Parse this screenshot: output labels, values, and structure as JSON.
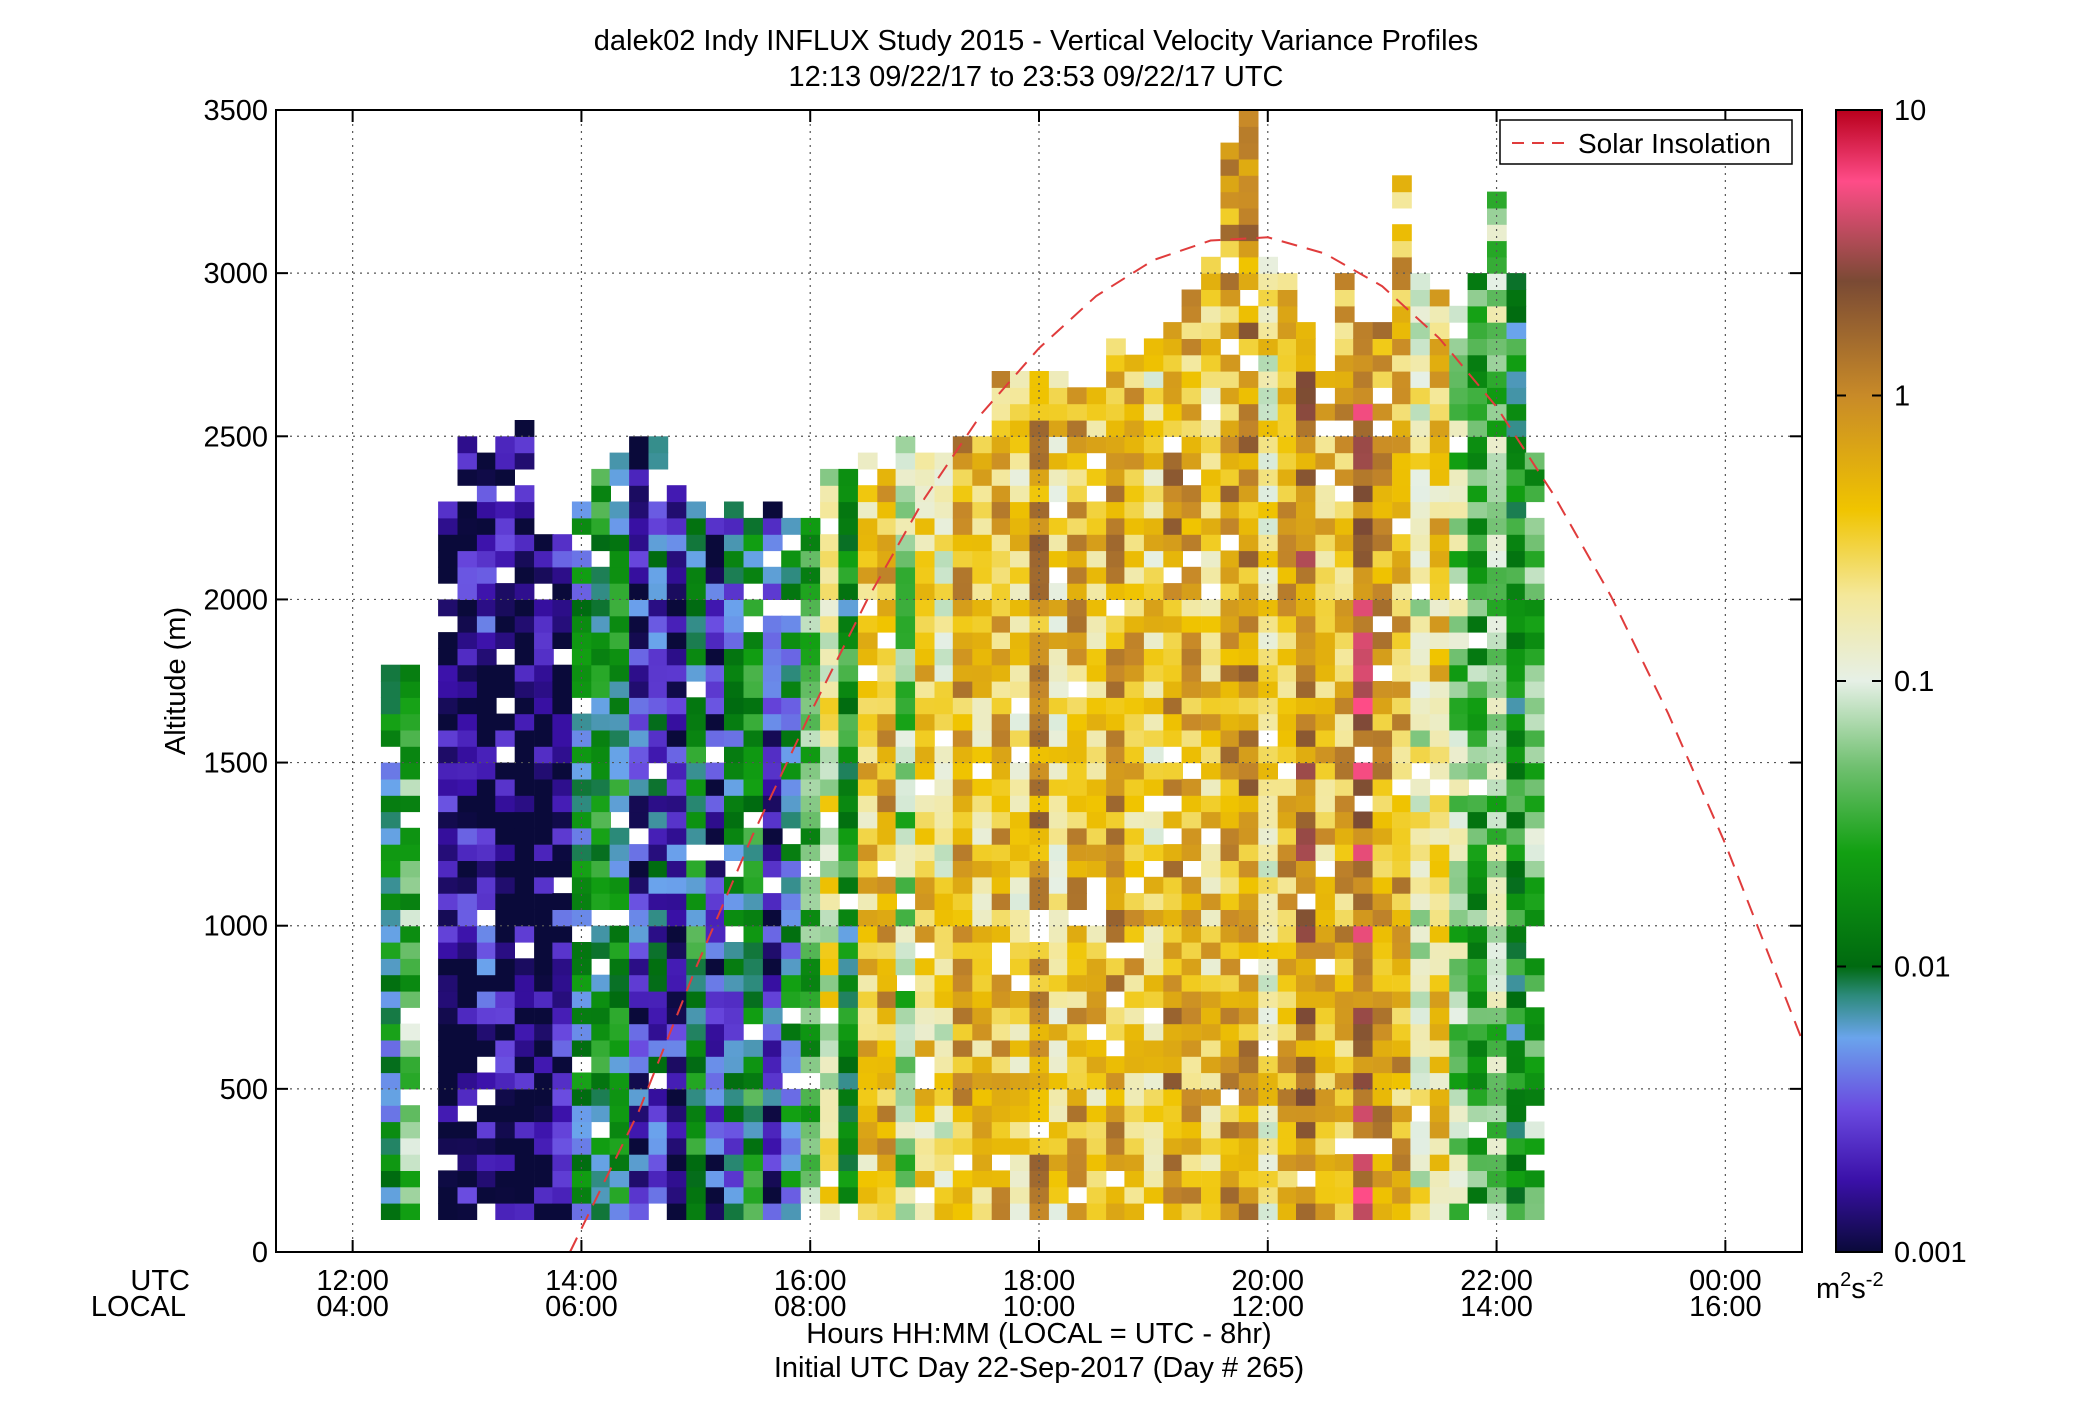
{
  "chart_data": {
    "type": "heatmap",
    "title": "dalek02 Indy INFLUX Study 2015 - Vertical Velocity Variance Profiles",
    "subtitle": "12:13 09/22/17 to 23:53 09/22/17  UTC",
    "ylabel": "Altitude (m)",
    "xlabel": "Hours HH:MM  (LOCAL = UTC - 8hr)",
    "xlabel2": "Initial UTC Day 22-Sep-2017 (Day # 265)",
    "x_axis_row_labels": [
      "UTC",
      "LOCAL"
    ],
    "xlim_hours_utc": [
      11.33,
      24.67
    ],
    "ylim": [
      0,
      3500
    ],
    "grid": true,
    "x_ticks": [
      {
        "hour": 12,
        "utc": "12:00",
        "local": "04:00"
      },
      {
        "hour": 14,
        "utc": "14:00",
        "local": "06:00"
      },
      {
        "hour": 16,
        "utc": "16:00",
        "local": "08:00"
      },
      {
        "hour": 18,
        "utc": "18:00",
        "local": "10:00"
      },
      {
        "hour": 20,
        "utc": "20:00",
        "local": "12:00"
      },
      {
        "hour": 22,
        "utc": "22:00",
        "local": "14:00"
      },
      {
        "hour": 24,
        "utc": "00:00",
        "local": "16:00"
      }
    ],
    "y_ticks": [
      0,
      500,
      1000,
      1500,
      2000,
      2500,
      3000,
      3500
    ],
    "colorbar": {
      "scale": "log",
      "range": [
        0.001,
        10
      ],
      "ticks": [
        {
          "value": 0.001,
          "label": "0.001"
        },
        {
          "value": 0.01,
          "label": "0.01"
        },
        {
          "value": 0.1,
          "label": "0.1"
        },
        {
          "value": 1,
          "label": "1"
        },
        {
          "value": 10,
          "label": "10"
        }
      ],
      "units_base": "m",
      "units_exp1": "2",
      "units_mid": "s",
      "units_exp2": "-2",
      "stops": [
        {
          "log10": -3.0,
          "color": "#0a0a3a"
        },
        {
          "log10": -2.75,
          "color": "#3a10a8"
        },
        {
          "log10": -2.5,
          "color": "#6a4ae0"
        },
        {
          "log10": -2.25,
          "color": "#6aa4ec"
        },
        {
          "log10": -2.1,
          "color": "#2c8a7a"
        },
        {
          "log10": -2.0,
          "color": "#006a10"
        },
        {
          "log10": -1.6,
          "color": "#12a012"
        },
        {
          "log10": -1.3,
          "color": "#70c070"
        },
        {
          "log10": -1.0,
          "color": "#e6f0e6"
        },
        {
          "log10": -0.7,
          "color": "#f4e89a"
        },
        {
          "log10": -0.4,
          "color": "#f0c400"
        },
        {
          "log10": 0.0,
          "color": "#c88a28"
        },
        {
          "log10": 0.4,
          "color": "#7a4a34"
        },
        {
          "log10": 0.75,
          "color": "#ff4c88"
        },
        {
          "log10": 1.0,
          "color": "#b8001c"
        }
      ]
    },
    "legend": {
      "label": "Solar Insolation",
      "placement": "top-right",
      "color": "#e03c3c",
      "style": "dashed"
    },
    "solar_insolation_curve": {
      "x_hours_utc": [
        13.9,
        14.5,
        15.0,
        15.5,
        16.0,
        16.5,
        17.0,
        17.5,
        18.0,
        18.5,
        19.0,
        19.5,
        20.0,
        20.5,
        21.0,
        21.5,
        22.0,
        22.5,
        23.0,
        23.5,
        24.0,
        24.67
      ],
      "y_altitude": [
        0,
        430,
        870,
        1280,
        1650,
        2000,
        2310,
        2570,
        2770,
        2930,
        3040,
        3100,
        3110,
        3060,
        2960,
        2800,
        2590,
        2320,
        2010,
        1650,
        1250,
        650
      ]
    },
    "profiles": {
      "time_step_hours": 0.1667,
      "bin_height_m": 50,
      "description_note": "",
      "columns": [
        {
          "t": 12.33,
          "top": 1800,
          "bands": [
            [
              0,
              1800,
              -2.0
            ]
          ]
        },
        {
          "t": 12.5,
          "top": 1800,
          "bands": [
            [
              0,
              1800,
              -1.4
            ]
          ]
        },
        {
          "t": 12.83,
          "top": 2300,
          "bands": [
            [
              0,
              2300,
              -2.9
            ]
          ]
        },
        {
          "t": 13.0,
          "top": 2500,
          "bands": [
            [
              0,
              2500,
              -2.85
            ]
          ]
        },
        {
          "t": 13.17,
          "top": 2450,
          "bands": [
            [
              0,
              2450,
              -2.7
            ]
          ]
        },
        {
          "t": 13.33,
          "top": 2500,
          "bands": [
            [
              0,
              2500,
              -2.9
            ]
          ]
        },
        {
          "t": 13.5,
          "top": 2550,
          "bands": [
            [
              0,
              2550,
              -3.0
            ]
          ]
        },
        {
          "t": 13.67,
          "top": 2200,
          "bands": [
            [
              0,
              2200,
              -3.0
            ]
          ]
        },
        {
          "t": 13.83,
          "top": 2200,
          "bands": [
            [
              0,
              2200,
              -2.8
            ]
          ]
        },
        {
          "t": 14.0,
          "top": 2300,
          "bands": [
            [
              0,
              2300,
              -2.0
            ]
          ]
        },
        {
          "t": 14.17,
          "top": 2400,
          "bands": [
            [
              0,
              2400,
              -1.8
            ]
          ]
        },
        {
          "t": 14.33,
          "top": 2450,
          "bands": [
            [
              0,
              2450,
              -1.9
            ]
          ]
        },
        {
          "t": 14.5,
          "top": 2500,
          "bands": [
            [
              0,
              2500,
              -2.6
            ]
          ]
        },
        {
          "t": 14.67,
          "top": 2500,
          "bands": [
            [
              0,
              2500,
              -2.4
            ]
          ]
        },
        {
          "t": 14.83,
          "top": 2350,
          "bands": [
            [
              0,
              2350,
              -2.7
            ]
          ]
        },
        {
          "t": 15.0,
          "top": 2350,
          "bands": [
            [
              0,
              2350,
              -1.8
            ]
          ]
        },
        {
          "t": 15.17,
          "top": 2300,
          "bands": [
            [
              0,
              2300,
              -2.7
            ]
          ]
        },
        {
          "t": 15.33,
          "top": 2300,
          "bands": [
            [
              0,
              2300,
              -2.2
            ]
          ]
        },
        {
          "t": 15.5,
          "top": 2250,
          "bands": [
            [
              0,
              2250,
              -1.8
            ]
          ]
        },
        {
          "t": 15.67,
          "top": 2300,
          "bands": [
            [
              0,
              2300,
              -2.6
            ]
          ]
        },
        {
          "t": 15.83,
          "top": 2250,
          "bands": [
            [
              0,
              2250,
              -2.0
            ]
          ]
        },
        {
          "t": 16.0,
          "top": 2300,
          "bands": [
            [
              0,
              2300,
              -1.5
            ]
          ]
        },
        {
          "t": 16.17,
          "top": 2400,
          "bands": [
            [
              0,
              2400,
              -0.8
            ]
          ]
        },
        {
          "t": 16.33,
          "top": 2400,
          "bands": [
            [
              0,
              2400,
              -1.8
            ]
          ]
        },
        {
          "t": 16.5,
          "top": 2450,
          "bands": [
            [
              0,
              2450,
              -0.5
            ]
          ]
        },
        {
          "t": 16.67,
          "top": 2400,
          "bands": [
            [
              0,
              2400,
              -0.3
            ]
          ]
        },
        {
          "t": 16.83,
          "top": 2500,
          "bands": [
            [
              0,
              2500,
              -1.2
            ]
          ]
        },
        {
          "t": 17.0,
          "top": 2500,
          "bands": [
            [
              0,
              2500,
              -0.5
            ]
          ]
        },
        {
          "t": 17.17,
          "top": 2450,
          "bands": [
            [
              0,
              2450,
              -0.7
            ]
          ]
        },
        {
          "t": 17.33,
          "top": 2500,
          "bands": [
            [
              0,
              2500,
              -0.2
            ]
          ]
        },
        {
          "t": 17.5,
          "top": 2500,
          "bands": [
            [
              0,
              2500,
              -0.5
            ]
          ]
        },
        {
          "t": 17.67,
          "top": 2700,
          "bands": [
            [
              0,
              2700,
              -0.3
            ]
          ]
        },
        {
          "t": 17.83,
          "top": 2700,
          "bands": [
            [
              0,
              2700,
              -0.6
            ]
          ]
        },
        {
          "t": 18.0,
          "top": 2700,
          "bands": [
            [
              0,
              2700,
              -0.1
            ]
          ]
        },
        {
          "t": 18.17,
          "top": 2700,
          "bands": [
            [
              0,
              2700,
              -0.6
            ]
          ]
        },
        {
          "t": 18.33,
          "top": 2700,
          "bands": [
            [
              0,
              2700,
              -0.3
            ]
          ]
        },
        {
          "t": 18.5,
          "top": 2650,
          "bands": [
            [
              0,
              2650,
              -0.5
            ]
          ]
        },
        {
          "t": 18.67,
          "top": 2800,
          "bands": [
            [
              0,
              2800,
              -0.2
            ]
          ]
        },
        {
          "t": 18.83,
          "top": 2750,
          "bands": [
            [
              0,
              2750,
              -0.4
            ]
          ]
        },
        {
          "t": 19.0,
          "top": 2800,
          "bands": [
            [
              0,
              2800,
              -0.6
            ]
          ]
        },
        {
          "t": 19.17,
          "top": 2850,
          "bands": [
            [
              0,
              2850,
              -0.1
            ]
          ]
        },
        {
          "t": 19.33,
          "top": 2950,
          "bands": [
            [
              0,
              2950,
              -0.3
            ]
          ]
        },
        {
          "t": 19.5,
          "top": 3050,
          "bands": [
            [
              0,
              3050,
              -0.5
            ]
          ]
        },
        {
          "t": 19.67,
          "top": 3400,
          "bands": [
            [
              0,
              3400,
              -0.2
            ]
          ]
        },
        {
          "t": 19.83,
          "top": 3500,
          "bands": [
            [
              0,
              3500,
              -0.1
            ]
          ]
        },
        {
          "t": 20.0,
          "top": 3050,
          "bands": [
            [
              0,
              3050,
              -0.7
            ]
          ]
        },
        {
          "t": 20.17,
          "top": 3000,
          "bands": [
            [
              0,
              3000,
              -0.3
            ]
          ]
        },
        {
          "t": 20.33,
          "top": 2850,
          "bands": [
            [
              0,
              2850,
              0.1
            ]
          ]
        },
        {
          "t": 20.5,
          "top": 2700,
          "bands": [
            [
              0,
              2700,
              -0.4
            ]
          ]
        },
        {
          "t": 20.67,
          "top": 3000,
          "bands": [
            [
              0,
              3000,
              -0.3
            ]
          ]
        },
        {
          "t": 20.83,
          "top": 2850,
          "bands": [
            [
              0,
              2850,
              0.3
            ]
          ]
        },
        {
          "t": 21.0,
          "top": 2850,
          "bands": [
            [
              0,
              2850,
              -0.2
            ]
          ]
        },
        {
          "t": 21.17,
          "top": 3300,
          "bands": [
            [
              0,
              3300,
              -0.3
            ]
          ]
        },
        {
          "t": 21.33,
          "top": 3000,
          "bands": [
            [
              0,
              3000,
              -0.9
            ]
          ]
        },
        {
          "t": 21.5,
          "top": 2950,
          "bands": [
            [
              0,
              2950,
              -0.5
            ]
          ]
        },
        {
          "t": 21.67,
          "top": 2900,
          "bands": [
            [
              0,
              2900,
              -1.2
            ]
          ]
        },
        {
          "t": 21.83,
          "top": 3000,
          "bands": [
            [
              0,
              3000,
              -1.5
            ]
          ]
        },
        {
          "t": 22.0,
          "top": 3250,
          "bands": [
            [
              0,
              3250,
              -1.2
            ]
          ]
        },
        {
          "t": 22.17,
          "top": 3000,
          "bands": [
            [
              0,
              3000,
              -1.8
            ]
          ]
        },
        {
          "t": 22.33,
          "top": 2450,
          "bands": [
            [
              0,
              2450,
              -1.4
            ]
          ]
        }
      ]
    }
  }
}
